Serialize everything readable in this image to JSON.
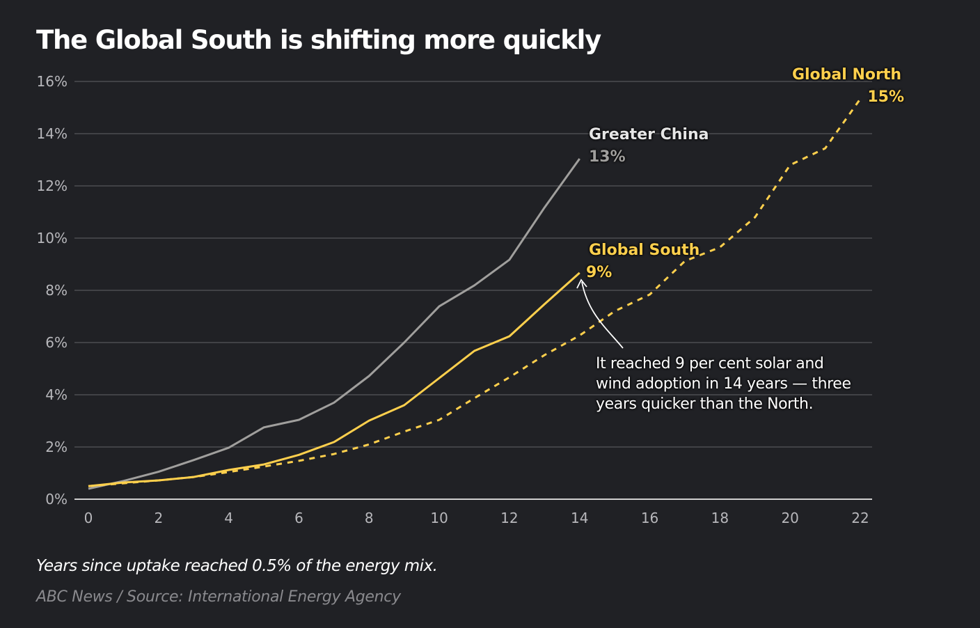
{
  "chart_data": {
    "type": "line",
    "title": "The Global South is shifting more quickly",
    "xlabel": "Years since uptake reached 0.5% of the energy mix.",
    "ylabel": "",
    "source": "ABC News / Source: International Energy Agency",
    "xlim": [
      0,
      22
    ],
    "ylim": [
      0,
      16
    ],
    "xticks": [
      0,
      2,
      4,
      6,
      8,
      10,
      12,
      14,
      16,
      18,
      20,
      22
    ],
    "yticks": [
      0,
      2,
      4,
      6,
      8,
      10,
      12,
      14,
      16
    ],
    "ytick_labels": [
      "0%",
      "2%",
      "4%",
      "6%",
      "8%",
      "10%",
      "12%",
      "14%",
      "16%"
    ],
    "grid": true,
    "series": [
      {
        "name": "Greater China",
        "end_label": "13%",
        "color": "#a09f9d",
        "dashed": false,
        "x": [
          0,
          1,
          2,
          3,
          4,
          5,
          6,
          7,
          8,
          9,
          10,
          11,
          12,
          13,
          14
        ],
        "values": [
          0.4,
          0.7,
          1.05,
          1.5,
          1.97,
          2.75,
          3.04,
          3.7,
          4.72,
          6.0,
          7.39,
          8.19,
          9.17,
          11.17,
          13.04
        ]
      },
      {
        "name": "Global North",
        "end_label": "15%",
        "color": "#ffd04d",
        "dashed": true,
        "x": [
          0,
          1,
          2,
          3,
          4,
          5,
          6,
          7,
          8,
          9,
          10,
          11,
          12,
          13,
          14,
          15,
          16,
          17,
          18,
          19,
          20,
          21,
          22
        ],
        "values": [
          0.5,
          0.61,
          0.72,
          0.85,
          1.04,
          1.25,
          1.47,
          1.73,
          2.1,
          2.59,
          3.04,
          3.87,
          4.67,
          5.52,
          6.27,
          7.2,
          7.84,
          9.12,
          9.65,
          10.8,
          12.8,
          13.44,
          15.33
        ]
      },
      {
        "name": "Global South",
        "end_label": "9%",
        "color": "#ffd04d",
        "dashed": false,
        "x": [
          0,
          1,
          2,
          3,
          4,
          5,
          6,
          7,
          8,
          9,
          10,
          11,
          12,
          13,
          14
        ],
        "values": [
          0.5,
          0.64,
          0.72,
          0.85,
          1.12,
          1.33,
          1.7,
          2.19,
          3.01,
          3.6,
          4.64,
          5.68,
          6.24,
          7.47,
          8.67
        ]
      }
    ],
    "annotations": [
      {
        "text": "It reached 9 per cent solar and wind adoption in 14 years — three years quicker than the North.",
        "target_series": "Global South",
        "target_x": 14
      }
    ]
  }
}
